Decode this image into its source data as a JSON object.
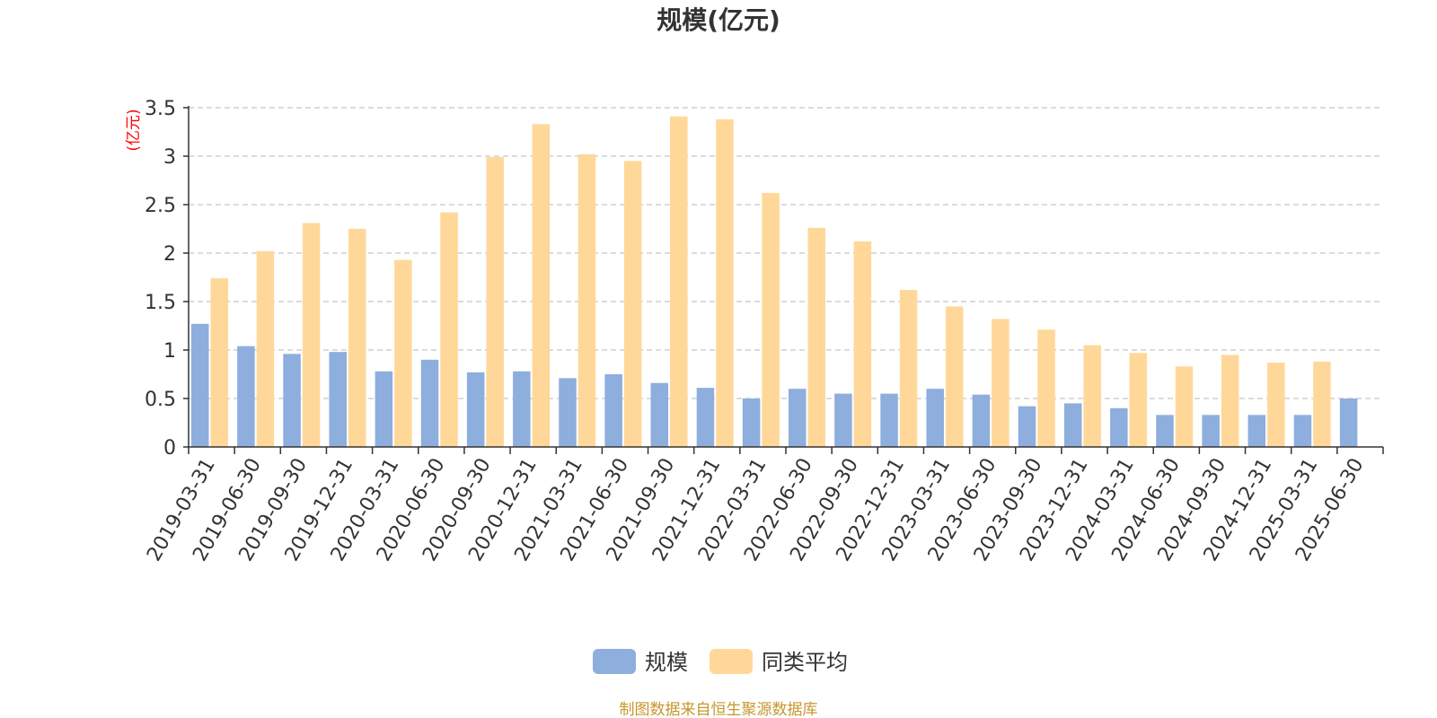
{
  "chart_data": {
    "type": "bar",
    "title": "规模(亿元)",
    "ylabel": "(亿元)",
    "ylim": [
      0,
      3.5
    ],
    "yticks": [
      "0",
      "0.5",
      "1",
      "1.5",
      "2",
      "2.5",
      "3",
      "3.5"
    ],
    "grid": true,
    "legend_position": "bottom",
    "categories": [
      "2019-03-31",
      "2019-06-30",
      "2019-09-30",
      "2019-12-31",
      "2020-03-31",
      "2020-06-30",
      "2020-09-30",
      "2020-12-31",
      "2021-03-31",
      "2021-06-30",
      "2021-09-30",
      "2021-12-31",
      "2022-03-31",
      "2022-06-30",
      "2022-09-30",
      "2022-12-31",
      "2023-03-31",
      "2023-06-30",
      "2023-09-30",
      "2023-12-31",
      "2024-03-31",
      "2024-06-30",
      "2024-09-30",
      "2024-12-31",
      "2025-03-31",
      "2025-06-30"
    ],
    "series": [
      {
        "name": "规模",
        "color": "#8eaedd",
        "values": [
          1.27,
          1.04,
          0.96,
          0.98,
          0.78,
          0.9,
          0.77,
          0.78,
          0.71,
          0.75,
          0.66,
          0.61,
          0.5,
          0.6,
          0.55,
          0.55,
          0.6,
          0.54,
          0.42,
          0.45,
          0.4,
          0.33,
          0.33,
          0.33,
          0.33,
          0.5
        ]
      },
      {
        "name": "同类平均",
        "color": "#ffd899",
        "values": [
          1.74,
          2.02,
          2.31,
          2.25,
          1.93,
          2.42,
          2.99,
          3.33,
          3.02,
          2.95,
          3.41,
          3.38,
          2.62,
          2.26,
          2.12,
          1.62,
          1.45,
          1.32,
          1.21,
          1.05,
          0.97,
          0.83,
          0.95,
          0.87,
          0.88,
          null
        ]
      }
    ],
    "source": "制图数据来自恒生聚源数据库"
  }
}
